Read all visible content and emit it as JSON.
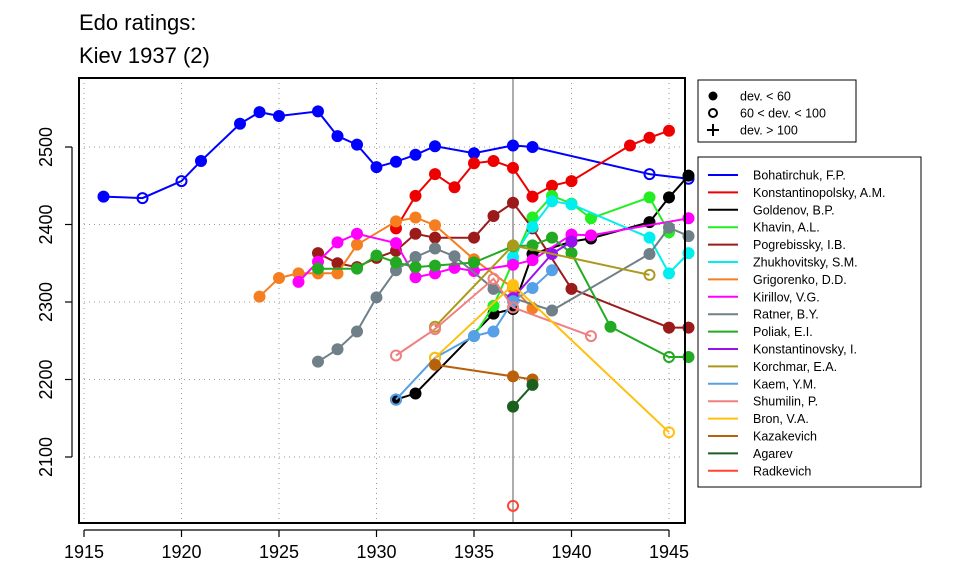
{
  "chart_data": {
    "type": "line",
    "title_lines": [
      "Edo ratings:",
      "Kiev 1937 (2)"
    ],
    "xlim": [
      1915,
      1947
    ],
    "ylim": [
      2030,
      2575
    ],
    "x_ticks": [
      1915,
      1920,
      1925,
      1930,
      1935,
      1940,
      1945
    ],
    "y_ticks": [
      2100,
      2200,
      2300,
      2400,
      2500
    ],
    "grid": true,
    "reference_x": 1937,
    "marker_legend": [
      "dev. < 60",
      "60 < dev. < 100",
      "dev. > 100"
    ],
    "series": [
      {
        "name": "Bohatirchuk, F.P.",
        "color": "#0000FF",
        "points": [
          {
            "x": 1916,
            "y": 2436,
            "m": "f"
          },
          {
            "x": 1918,
            "y": 2434,
            "m": "o"
          },
          {
            "x": 1920,
            "y": 2456,
            "m": "o"
          },
          {
            "x": 1921,
            "y": 2482,
            "m": "f"
          },
          {
            "x": 1923,
            "y": 2530,
            "m": "f"
          },
          {
            "x": 1924,
            "y": 2545,
            "m": "f"
          },
          {
            "x": 1925,
            "y": 2540,
            "m": "f"
          },
          {
            "x": 1927,
            "y": 2546,
            "m": "f"
          },
          {
            "x": 1928,
            "y": 2514,
            "m": "f"
          },
          {
            "x": 1929,
            "y": 2503,
            "m": "f"
          },
          {
            "x": 1930,
            "y": 2474,
            "m": "f"
          },
          {
            "x": 1931,
            "y": 2481,
            "m": "f"
          },
          {
            "x": 1932,
            "y": 2490,
            "m": "f"
          },
          {
            "x": 1933,
            "y": 2501,
            "m": "f"
          },
          {
            "x": 1935,
            "y": 2492,
            "m": "f"
          },
          {
            "x": 1937,
            "y": 2502,
            "m": "f"
          },
          {
            "x": 1938,
            "y": 2500,
            "m": "f"
          },
          {
            "x": 1944,
            "y": 2465,
            "m": "o"
          },
          {
            "x": 1946,
            "y": 2459,
            "m": "o"
          }
        ]
      },
      {
        "name": "Konstantinopolsky, A.M.",
        "color": "#EE0000",
        "points": [
          {
            "x": 1931,
            "y": 2395,
            "m": "f"
          },
          {
            "x": 1932,
            "y": 2437,
            "m": "f"
          },
          {
            "x": 1933,
            "y": 2465,
            "m": "f"
          },
          {
            "x": 1934,
            "y": 2448,
            "m": "f"
          },
          {
            "x": 1935,
            "y": 2479,
            "m": "f"
          },
          {
            "x": 1936,
            "y": 2482,
            "m": "f"
          },
          {
            "x": 1937,
            "y": 2473,
            "m": "f"
          },
          {
            "x": 1938,
            "y": 2436,
            "m": "f"
          },
          {
            "x": 1939,
            "y": 2450,
            "m": "f"
          },
          {
            "x": 1940,
            "y": 2456,
            "m": "f"
          },
          {
            "x": 1943,
            "y": 2502,
            "m": "f"
          },
          {
            "x": 1944,
            "y": 2512,
            "m": "f"
          },
          {
            "x": 1945,
            "y": 2521,
            "m": "f"
          }
        ]
      },
      {
        "name": "Goldenov, B.P.",
        "color": "#000000",
        "points": [
          {
            "x": 1931,
            "y": 2174,
            "m": "f"
          },
          {
            "x": 1932,
            "y": 2182,
            "m": "f"
          },
          {
            "x": 1936,
            "y": 2285,
            "m": "f"
          },
          {
            "x": 1937,
            "y": 2291,
            "m": "f"
          },
          {
            "x": 1938,
            "y": 2362,
            "m": "f"
          },
          {
            "x": 1940,
            "y": 2378,
            "m": "f"
          },
          {
            "x": 1941,
            "y": 2382,
            "m": "f"
          },
          {
            "x": 1944,
            "y": 2403,
            "m": "f"
          },
          {
            "x": 1945,
            "y": 2435,
            "m": "f"
          },
          {
            "x": 1946,
            "y": 2463,
            "m": "f"
          }
        ]
      },
      {
        "name": "Khavin, A.L.",
        "color": "#22EE22",
        "points": [
          {
            "x": 1935,
            "y": 2256,
            "m": "f"
          },
          {
            "x": 1936,
            "y": 2295,
            "m": "f"
          },
          {
            "x": 1937,
            "y": 2352,
            "m": "f"
          },
          {
            "x": 1938,
            "y": 2409,
            "m": "f"
          },
          {
            "x": 1939,
            "y": 2437,
            "m": "f"
          },
          {
            "x": 1940,
            "y": 2427,
            "m": "f"
          },
          {
            "x": 1941,
            "y": 2408,
            "m": "f"
          },
          {
            "x": 1944,
            "y": 2435,
            "m": "f"
          },
          {
            "x": 1945,
            "y": 2390,
            "m": "f"
          }
        ]
      },
      {
        "name": "Pogrebissky, I.B.",
        "color": "#9B1B1B",
        "points": [
          {
            "x": 1927,
            "y": 2363,
            "m": "f"
          },
          {
            "x": 1928,
            "y": 2350,
            "m": "f"
          },
          {
            "x": 1929,
            "y": 2345,
            "m": "f"
          },
          {
            "x": 1930,
            "y": 2357,
            "m": "f"
          },
          {
            "x": 1931,
            "y": 2366,
            "m": "f"
          },
          {
            "x": 1932,
            "y": 2388,
            "m": "f"
          },
          {
            "x": 1933,
            "y": 2383,
            "m": "f"
          },
          {
            "x": 1935,
            "y": 2383,
            "m": "f"
          },
          {
            "x": 1936,
            "y": 2411,
            "m": "f"
          },
          {
            "x": 1937,
            "y": 2428,
            "m": "f"
          },
          {
            "x": 1938,
            "y": 2395,
            "m": "f"
          },
          {
            "x": 1940,
            "y": 2317,
            "m": "f"
          },
          {
            "x": 1945,
            "y": 2267,
            "m": "f"
          },
          {
            "x": 1946,
            "y": 2267,
            "m": "f"
          }
        ]
      },
      {
        "name": "Zhukhovitsky, S.M.",
        "color": "#00EEEE",
        "points": [
          {
            "x": 1937,
            "y": 2358,
            "m": "f"
          },
          {
            "x": 1938,
            "y": 2397,
            "m": "f"
          },
          {
            "x": 1939,
            "y": 2430,
            "m": "f"
          },
          {
            "x": 1940,
            "y": 2426,
            "m": "f"
          },
          {
            "x": 1944,
            "y": 2383,
            "m": "f"
          },
          {
            "x": 1945,
            "y": 2337,
            "m": "f"
          },
          {
            "x": 1946,
            "y": 2363,
            "m": "f"
          }
        ]
      },
      {
        "name": "Grigorenko, D.D.",
        "color": "#F57F20",
        "points": [
          {
            "x": 1924,
            "y": 2307,
            "m": "f"
          },
          {
            "x": 1925,
            "y": 2331,
            "m": "f"
          },
          {
            "x": 1926,
            "y": 2337,
            "m": "f"
          },
          {
            "x": 1927,
            "y": 2337,
            "m": "f"
          },
          {
            "x": 1928,
            "y": 2337,
            "m": "f"
          },
          {
            "x": 1929,
            "y": 2374,
            "m": "f"
          },
          {
            "x": 1931,
            "y": 2404,
            "m": "f"
          },
          {
            "x": 1932,
            "y": 2409,
            "m": "f"
          },
          {
            "x": 1933,
            "y": 2399,
            "m": "f"
          },
          {
            "x": 1935,
            "y": 2355,
            "m": "f"
          },
          {
            "x": 1937,
            "y": 2318,
            "m": "f"
          },
          {
            "x": 1938,
            "y": 2292,
            "m": "f"
          }
        ]
      },
      {
        "name": "Kirillov, V.G.",
        "color": "#FF00FF",
        "points": [
          {
            "x": 1926,
            "y": 2326,
            "m": "f"
          },
          {
            "x": 1927,
            "y": 2352,
            "m": "f"
          },
          {
            "x": 1928,
            "y": 2377,
            "m": "f"
          },
          {
            "x": 1929,
            "y": 2388,
            "m": "f"
          },
          {
            "x": 1931,
            "y": 2376,
            "m": "f"
          },
          {
            "x": 1932,
            "y": 2332,
            "m": "f"
          },
          {
            "x": 1933,
            "y": 2337,
            "m": "f"
          },
          {
            "x": 1934,
            "y": 2344,
            "m": "f"
          },
          {
            "x": 1935,
            "y": 2340,
            "m": "f"
          },
          {
            "x": 1937,
            "y": 2348,
            "m": "f"
          },
          {
            "x": 1938,
            "y": 2354,
            "m": "f"
          },
          {
            "x": 1940,
            "y": 2387,
            "m": "f"
          },
          {
            "x": 1941,
            "y": 2386,
            "m": "f"
          },
          {
            "x": 1946,
            "y": 2408,
            "m": "f"
          }
        ]
      },
      {
        "name": "Ratner, B.Y.",
        "color": "#708088",
        "points": [
          {
            "x": 1927,
            "y": 2223,
            "m": "f"
          },
          {
            "x": 1928,
            "y": 2239,
            "m": "f"
          },
          {
            "x": 1929,
            "y": 2262,
            "m": "f"
          },
          {
            "x": 1930,
            "y": 2306,
            "m": "f"
          },
          {
            "x": 1931,
            "y": 2341,
            "m": "f"
          },
          {
            "x": 1932,
            "y": 2358,
            "m": "f"
          },
          {
            "x": 1933,
            "y": 2369,
            "m": "f"
          },
          {
            "x": 1934,
            "y": 2359,
            "m": "f"
          },
          {
            "x": 1936,
            "y": 2317,
            "m": "f"
          },
          {
            "x": 1937,
            "y": 2305,
            "m": "f"
          },
          {
            "x": 1939,
            "y": 2289,
            "m": "f"
          },
          {
            "x": 1944,
            "y": 2362,
            "m": "f"
          },
          {
            "x": 1945,
            "y": 2396,
            "m": "f"
          },
          {
            "x": 1946,
            "y": 2385,
            "m": "f"
          }
        ]
      },
      {
        "name": "Poliak, E.I.",
        "color": "#22AA22",
        "points": [
          {
            "x": 1927,
            "y": 2343,
            "m": "f"
          },
          {
            "x": 1929,
            "y": 2343,
            "m": "f"
          },
          {
            "x": 1930,
            "y": 2360,
            "m": "f"
          },
          {
            "x": 1931,
            "y": 2351,
            "m": "f"
          },
          {
            "x": 1932,
            "y": 2345,
            "m": "f"
          },
          {
            "x": 1933,
            "y": 2347,
            "m": "f"
          },
          {
            "x": 1935,
            "y": 2351,
            "m": "f"
          },
          {
            "x": 1937,
            "y": 2372,
            "m": "f"
          },
          {
            "x": 1938,
            "y": 2373,
            "m": "f"
          },
          {
            "x": 1939,
            "y": 2383,
            "m": "f"
          },
          {
            "x": 1940,
            "y": 2363,
            "m": "f"
          },
          {
            "x": 1942,
            "y": 2268,
            "m": "f"
          },
          {
            "x": 1945,
            "y": 2229,
            "m": "o"
          },
          {
            "x": 1946,
            "y": 2229,
            "m": "f"
          }
        ]
      },
      {
        "name": "Konstantinovsky, I.",
        "color": "#9B10EE",
        "points": [
          {
            "x": 1937,
            "y": 2305,
            "m": "f"
          },
          {
            "x": 1939,
            "y": 2362,
            "m": "f"
          },
          {
            "x": 1940,
            "y": 2378,
            "m": "f"
          }
        ]
      },
      {
        "name": "Korchmar, E.A.",
        "color": "#AA9A1B",
        "points": [
          {
            "x": 1933,
            "y": 2268,
            "m": "o"
          },
          {
            "x": 1937,
            "y": 2373,
            "m": "f"
          },
          {
            "x": 1944,
            "y": 2335,
            "m": "o"
          }
        ]
      },
      {
        "name": "Kaem, Y.M.",
        "color": "#55A0E6",
        "points": [
          {
            "x": 1931,
            "y": 2174,
            "m": "o"
          },
          {
            "x": 1933,
            "y": 2228,
            "m": "o"
          },
          {
            "x": 1935,
            "y": 2256,
            "m": "f"
          },
          {
            "x": 1936,
            "y": 2262,
            "m": "f"
          },
          {
            "x": 1937,
            "y": 2301,
            "m": "f"
          },
          {
            "x": 1938,
            "y": 2318,
            "m": "f"
          },
          {
            "x": 1939,
            "y": 2341,
            "m": "f"
          }
        ]
      },
      {
        "name": "Shumilin, P.",
        "color": "#F08080",
        "points": [
          {
            "x": 1931,
            "y": 2231,
            "m": "o"
          },
          {
            "x": 1933,
            "y": 2265,
            "m": "o"
          },
          {
            "x": 1936,
            "y": 2330,
            "m": "o"
          },
          {
            "x": 1937,
            "y": 2293,
            "m": "o"
          },
          {
            "x": 1941,
            "y": 2256,
            "m": "o"
          }
        ]
      },
      {
        "name": "Bron, V.A.",
        "color": "#FFC010",
        "points": [
          {
            "x": 1933,
            "y": 2228,
            "m": "o"
          },
          {
            "x": 1937,
            "y": 2322,
            "m": "f"
          },
          {
            "x": 1945,
            "y": 2132,
            "m": "o"
          }
        ]
      },
      {
        "name": "Kazakevich",
        "color": "#B8600A",
        "points": [
          {
            "x": 1933,
            "y": 2219,
            "m": "f"
          },
          {
            "x": 1937,
            "y": 2204,
            "m": "f"
          },
          {
            "x": 1938,
            "y": 2200,
            "m": "f"
          }
        ]
      },
      {
        "name": "Agarev",
        "color": "#1B5E20",
        "points": [
          {
            "x": 1937,
            "y": 2165,
            "m": "f"
          },
          {
            "x": 1938,
            "y": 2193,
            "m": "f"
          }
        ]
      },
      {
        "name": "Radkevich",
        "color": "#FF4530",
        "points": [
          {
            "x": 1937,
            "y": 2037,
            "m": "o"
          }
        ]
      }
    ]
  }
}
